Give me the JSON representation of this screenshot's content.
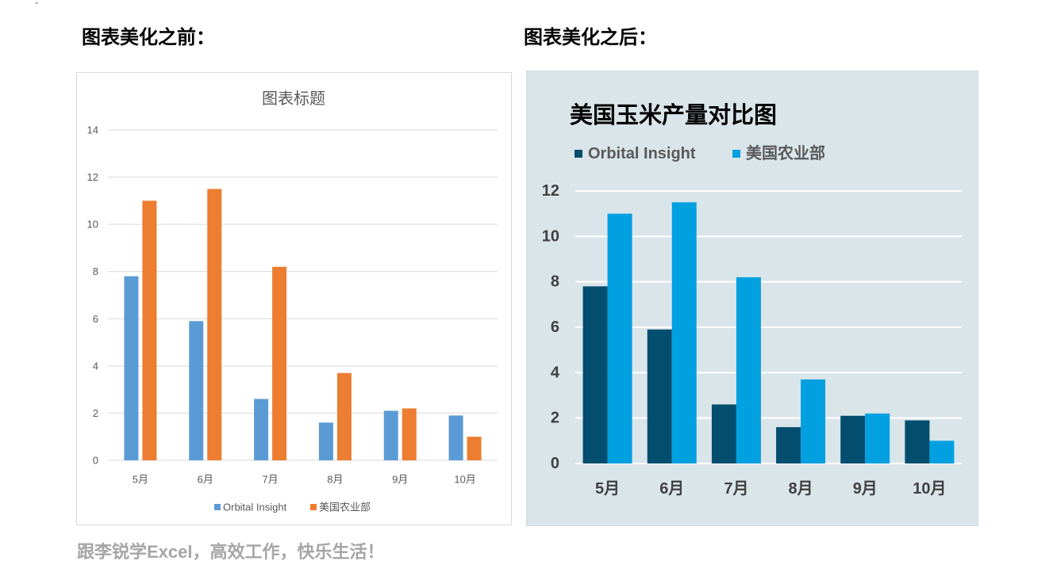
{
  "corner_mark": "`",
  "headings": {
    "before": "图表美化之前：",
    "after": "图表美化之后："
  },
  "footer": "跟李锐学Excel，高效工作，快乐生活！",
  "chart_data": [
    {
      "type": "bar",
      "title": "图表标题",
      "categories": [
        "5月",
        "6月",
        "7月",
        "8月",
        "9月",
        "10月"
      ],
      "series": [
        {
          "name": "Orbital Insight",
          "values": [
            7.8,
            5.9,
            2.6,
            1.6,
            2.1,
            1.9
          ],
          "color": "#5B9BD5"
        },
        {
          "name": "美国农业部",
          "values": [
            11.0,
            11.5,
            8.2,
            3.7,
            2.2,
            1.0
          ],
          "color": "#ED7D31"
        }
      ],
      "ylim": [
        0,
        14
      ],
      "yticks": [
        0,
        2,
        4,
        6,
        8,
        10,
        12,
        14
      ],
      "grid": true,
      "legend": "bottom",
      "background": "#FFFFFF"
    },
    {
      "type": "bar",
      "title": "美国玉米产量对比图",
      "categories": [
        "5月",
        "6月",
        "7月",
        "8月",
        "9月",
        "10月"
      ],
      "series": [
        {
          "name": "Orbital Insight",
          "values": [
            7.8,
            5.9,
            2.6,
            1.6,
            2.1,
            1.9
          ],
          "color": "#034E6E"
        },
        {
          "name": "美国农业部",
          "values": [
            11.0,
            11.5,
            8.2,
            3.7,
            2.2,
            1.0
          ],
          "color": "#00A0E1"
        }
      ],
      "ylim": [
        0,
        12
      ],
      "yticks": [
        0,
        2,
        4,
        6,
        8,
        10,
        12
      ],
      "grid": true,
      "legend": "top-left",
      "background": "#DAE5EA"
    }
  ]
}
